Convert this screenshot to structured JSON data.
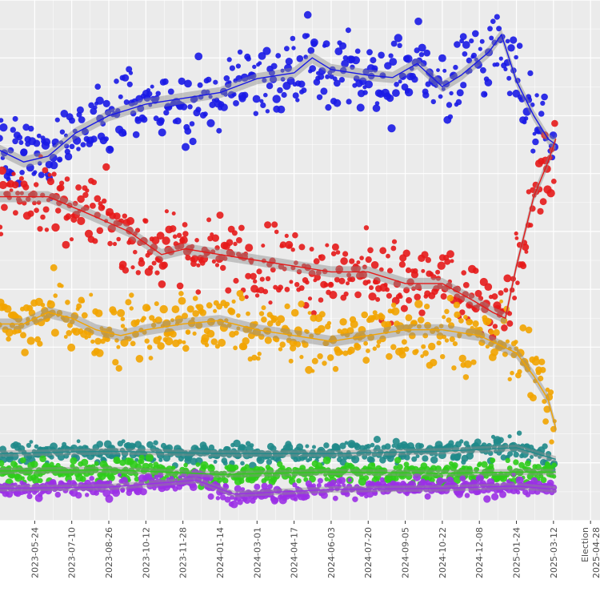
{
  "chart_data": {
    "type": "scatter",
    "title": "",
    "xlabel": "",
    "ylabel": "",
    "x_type": "date",
    "xlim": [
      "2023-04-10",
      "2025-05-10"
    ],
    "ylim": [
      0,
      45
    ],
    "grid": true,
    "legend": "none",
    "tick_labels": [
      {
        "value": "2023-05-24",
        "label": "2023-05-24"
      },
      {
        "value": "2023-07-10",
        "label": "2023-07-10"
      },
      {
        "value": "2023-08-26",
        "label": "2023-08-26"
      },
      {
        "value": "2023-10-12",
        "label": "2023-10-12"
      },
      {
        "value": "2023-11-28",
        "label": "2023-11-28"
      },
      {
        "value": "2024-01-14",
        "label": "2024-01-14"
      },
      {
        "value": "2024-03-01",
        "label": "2024-03-01"
      },
      {
        "value": "2024-04-17",
        "label": "2024-04-17"
      },
      {
        "value": "2024-06-03",
        "label": "2024-06-03"
      },
      {
        "value": "2024-07-20",
        "label": "2024-07-20"
      },
      {
        "value": "2024-09-05",
        "label": "2024-09-05"
      },
      {
        "value": "2024-10-22",
        "label": "2024-10-22"
      },
      {
        "value": "2024-12-08",
        "label": "2024-12-08"
      },
      {
        "value": "2025-01-24",
        "label": "2025-01-24"
      },
      {
        "value": "2025-03-12",
        "label": "2025-03-12"
      },
      {
        "value": "2025-04-28",
        "label": "Election 2025-04-28"
      }
    ],
    "series": [
      {
        "color": "#1a1ae6",
        "trend": [
          [
            "2023-04-10",
            32.0
          ],
          [
            "2023-05-10",
            31.0
          ],
          [
            "2023-06-10",
            31.5
          ],
          [
            "2023-07-15",
            33.5
          ],
          [
            "2023-08-26",
            35.0
          ],
          [
            "2023-10-12",
            36.0
          ],
          [
            "2023-11-28",
            36.5
          ],
          [
            "2024-01-14",
            37.0
          ],
          [
            "2024-03-01",
            38.2
          ],
          [
            "2024-04-17",
            38.7
          ],
          [
            "2024-05-10",
            40.0
          ],
          [
            "2024-06-03",
            39.0
          ],
          [
            "2024-07-20",
            38.5
          ],
          [
            "2024-08-20",
            38.3
          ],
          [
            "2024-09-20",
            39.5
          ],
          [
            "2024-10-22",
            37.5
          ],
          [
            "2024-11-15",
            38.5
          ],
          [
            "2024-12-20",
            40.5
          ],
          [
            "2025-01-05",
            42.0
          ],
          [
            "2025-01-24",
            38.0
          ],
          [
            "2025-02-15",
            35.0
          ],
          [
            "2025-03-05",
            33.0
          ],
          [
            "2025-03-15",
            32.5
          ]
        ]
      },
      {
        "color": "#e61a1a",
        "trend": [
          [
            "2023-04-10",
            28.0
          ],
          [
            "2023-06-10",
            28.0
          ],
          [
            "2023-08-01",
            26.5
          ],
          [
            "2023-09-20",
            25.0
          ],
          [
            "2023-11-01",
            23.0
          ],
          [
            "2023-12-01",
            23.5
          ],
          [
            "2024-01-14",
            23.0
          ],
          [
            "2024-03-01",
            22.5
          ],
          [
            "2024-04-17",
            22.0
          ],
          [
            "2024-06-03",
            21.5
          ],
          [
            "2024-07-20",
            21.5
          ],
          [
            "2024-09-05",
            20.5
          ],
          [
            "2024-10-22",
            20.5
          ],
          [
            "2024-12-01",
            19.0
          ],
          [
            "2024-12-25",
            18.0
          ],
          [
            "2025-01-10",
            17.5
          ],
          [
            "2025-01-24",
            22.0
          ],
          [
            "2025-02-15",
            28.0
          ],
          [
            "2025-03-05",
            31.0
          ],
          [
            "2025-03-15",
            33.0
          ]
        ]
      },
      {
        "color": "#f2a400",
        "trend": [
          [
            "2023-04-10",
            17.0
          ],
          [
            "2023-05-10",
            17.0
          ],
          [
            "2023-06-10",
            18.0
          ],
          [
            "2023-07-10",
            17.5
          ],
          [
            "2023-08-10",
            16.5
          ],
          [
            "2023-09-10",
            16.0
          ],
          [
            "2023-10-12",
            16.5
          ],
          [
            "2023-11-28",
            17.0
          ],
          [
            "2024-01-14",
            17.3
          ],
          [
            "2024-03-01",
            16.5
          ],
          [
            "2024-04-17",
            16.0
          ],
          [
            "2024-06-03",
            15.5
          ],
          [
            "2024-07-20",
            16.0
          ],
          [
            "2024-09-05",
            16.5
          ],
          [
            "2024-10-22",
            16.5
          ],
          [
            "2024-12-08",
            16.0
          ],
          [
            "2025-01-24",
            14.5
          ],
          [
            "2025-02-15",
            12.5
          ],
          [
            "2025-03-05",
            10.5
          ],
          [
            "2025-03-15",
            8.0
          ]
        ]
      },
      {
        "color": "#1f8a8a",
        "trend": [
          [
            "2023-04-10",
            5.8
          ],
          [
            "2023-08-26",
            6.0
          ],
          [
            "2024-01-14",
            5.8
          ],
          [
            "2024-06-03",
            5.8
          ],
          [
            "2024-10-22",
            6.0
          ],
          [
            "2025-01-24",
            6.3
          ],
          [
            "2025-03-15",
            5.3
          ]
        ]
      },
      {
        "color": "#2ecc1a",
        "trend": [
          [
            "2023-04-10",
            4.3
          ],
          [
            "2023-08-26",
            4.4
          ],
          [
            "2024-01-14",
            4.0
          ],
          [
            "2024-06-03",
            4.2
          ],
          [
            "2024-10-22",
            4.1
          ],
          [
            "2025-01-24",
            4.2
          ],
          [
            "2025-03-15",
            4.2
          ]
        ]
      },
      {
        "color": "#9b30e6",
        "trend": [
          [
            "2023-04-10",
            2.8
          ],
          [
            "2023-08-26",
            2.9
          ],
          [
            "2023-12-15",
            3.5
          ],
          [
            "2024-02-01",
            2.3
          ],
          [
            "2024-06-03",
            2.7
          ],
          [
            "2024-10-22",
            2.8
          ],
          [
            "2025-01-24",
            3.0
          ],
          [
            "2025-03-15",
            2.7
          ]
        ]
      }
    ]
  }
}
